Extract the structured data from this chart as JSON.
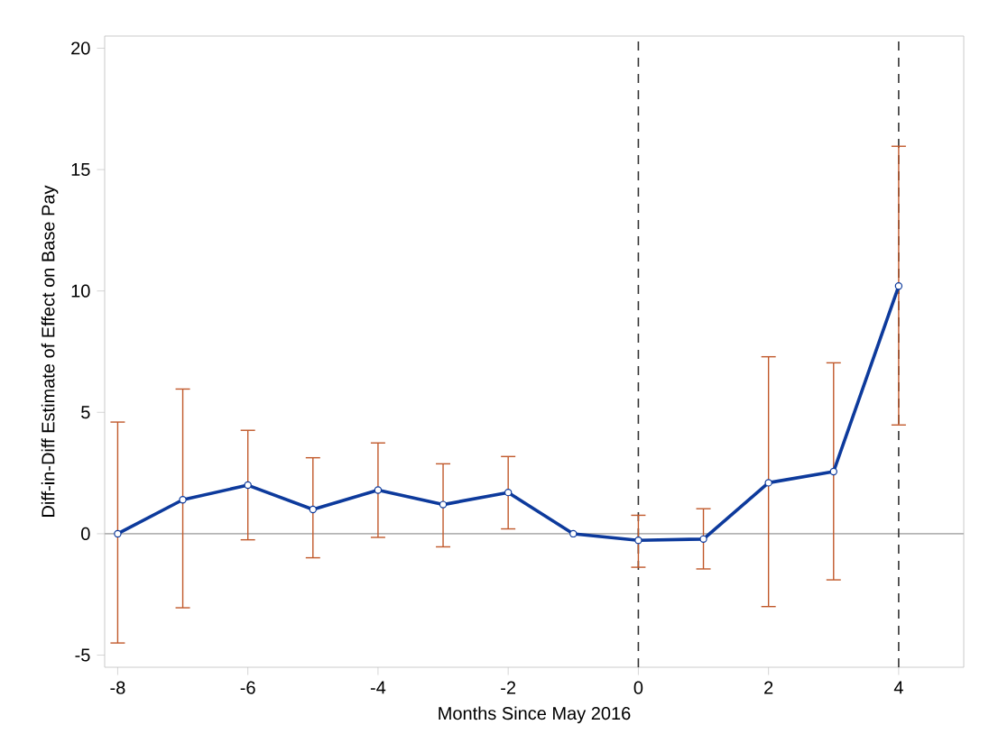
{
  "chart_data": {
    "type": "line",
    "xlabel": "Months Since May 2016",
    "ylabel": "Diff-in-Diff Estimate of Effect on Base Pay",
    "x": [
      -8,
      -7,
      -6,
      -5,
      -4,
      -3,
      -2,
      -1,
      0,
      1,
      2,
      3,
      4
    ],
    "series": [
      {
        "color": "#0d3a9c",
        "values": [
          0,
          1.4,
          2.0,
          1.0,
          1.8,
          1.2,
          1.7,
          0,
          -0.27,
          -0.22,
          2.1,
          2.56,
          10.2
        ],
        "errors": [
          [
            -4.5,
            4.6
          ],
          [
            -3.05,
            5.96
          ],
          [
            -0.25,
            4.26
          ],
          [
            -0.99,
            3.13
          ],
          [
            -0.15,
            3.74
          ],
          [
            -0.54,
            2.88
          ],
          [
            0.2,
            3.18
          ],
          null,
          [
            -1.38,
            0.76
          ],
          [
            -1.45,
            1.03
          ],
          [
            -3.0,
            7.29
          ],
          [
            -1.9,
            7.04
          ],
          [
            4.48,
            15.96
          ]
        ]
      }
    ],
    "marker": "circle",
    "line_style": "solid",
    "grid": false,
    "xlim": [
      -8.2,
      5
    ],
    "ylim": [
      -5.5,
      20.5
    ],
    "xticks": [
      -8,
      -6,
      -4,
      -2,
      0,
      2,
      4
    ],
    "yticks": [
      -5,
      0,
      5,
      10,
      15,
      20
    ],
    "ref_lines": [
      {
        "axis": "y",
        "value": 0,
        "color": "#b4b4b4",
        "line_style": "solid"
      },
      {
        "axis": "x",
        "value": 0,
        "color": "#333333",
        "line_style": "dashed"
      },
      {
        "axis": "x",
        "value": 4,
        "color": "#333333",
        "line_style": "dashed"
      }
    ]
  }
}
